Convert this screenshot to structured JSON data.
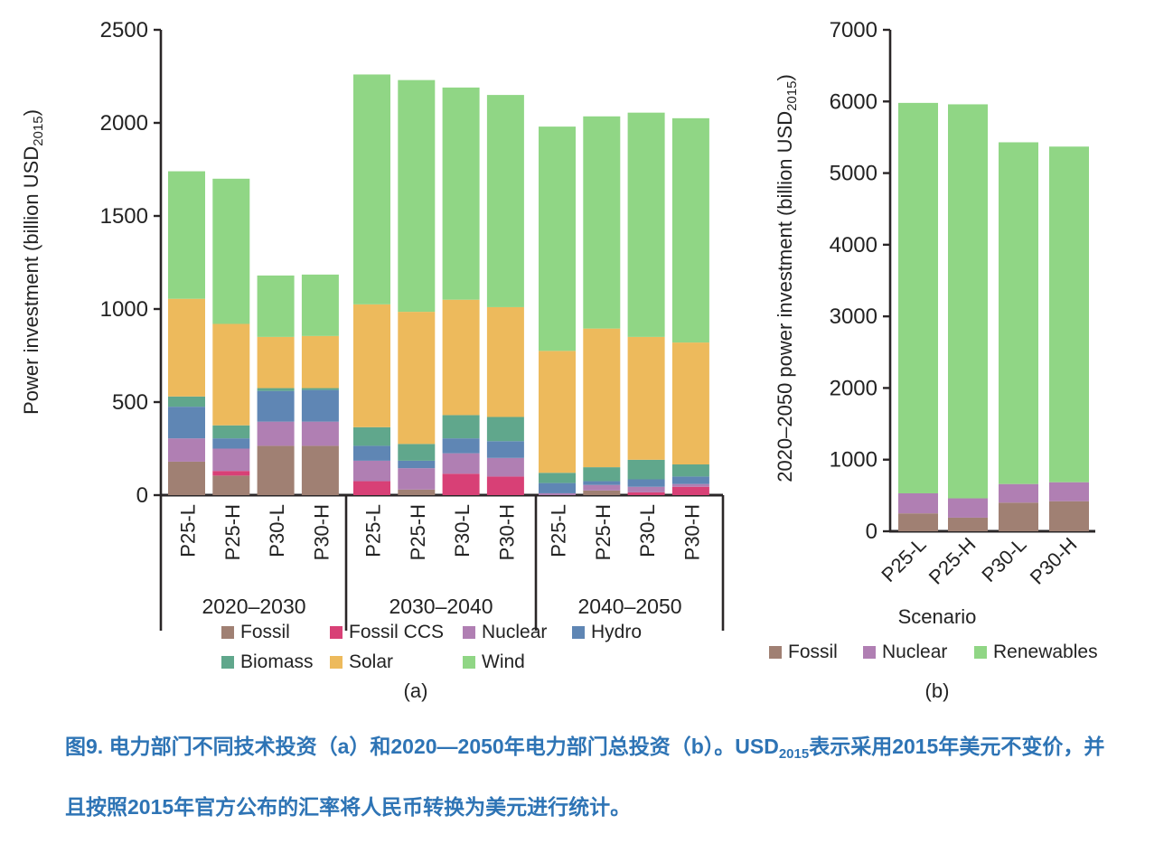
{
  "figure": {
    "background_color": "#ffffff",
    "text_color": "#232323",
    "axis_color": "#2a2627"
  },
  "chart_data": [
    {
      "id": "a",
      "type": "bar",
      "subtype": "stacked",
      "sublabel": "(a)",
      "ylabel": {
        "text": "Power investment (billion USD",
        "sub": "2015",
        "end": ")"
      },
      "ylim": [
        0,
        2500
      ],
      "yticks": [
        0,
        500,
        1000,
        1500,
        2000,
        2500
      ],
      "grid": "off",
      "legend_position": "below, two rows",
      "groups": [
        "2020–2030",
        "2030–2040",
        "2040–2050"
      ],
      "categories": [
        "P25-L",
        "P25-H",
        "P30-L",
        "P30-H"
      ],
      "series": [
        {
          "name": "Fossil",
          "color": "#a08073",
          "values": [
            180,
            105,
            265,
            265,
            0,
            30,
            0,
            0,
            0,
            25,
            0,
            0
          ]
        },
        {
          "name": "Fossil CCS",
          "color": "#d84076",
          "values": [
            0,
            25,
            0,
            0,
            75,
            0,
            115,
            100,
            0,
            0,
            15,
            45
          ]
        },
        {
          "name": "Nuclear",
          "color": "#b07fb3",
          "values": [
            125,
            120,
            130,
            130,
            110,
            115,
            110,
            100,
            10,
            30,
            30,
            15
          ]
        },
        {
          "name": "Hydro",
          "color": "#5f86b4",
          "values": [
            170,
            55,
            165,
            170,
            80,
            40,
            80,
            90,
            55,
            20,
            40,
            40
          ]
        },
        {
          "name": "Biomass",
          "color": "#60a78c",
          "values": [
            55,
            70,
            15,
            10,
            100,
            90,
            125,
            130,
            55,
            75,
            105,
            65
          ]
        },
        {
          "name": "Solar",
          "color": "#edba5c",
          "values": [
            525,
            545,
            275,
            280,
            660,
            710,
            620,
            590,
            655,
            745,
            660,
            655
          ]
        },
        {
          "name": "Wind",
          "color": "#90d685",
          "values": [
            685,
            780,
            330,
            330,
            1235,
            1245,
            1140,
            1140,
            1205,
            1140,
            1205,
            1205
          ]
        }
      ],
      "bar_totals": [
        1740,
        1700,
        1180,
        1185,
        2260,
        2230,
        2190,
        2150,
        1980,
        2035,
        2055,
        2025
      ]
    },
    {
      "id": "b",
      "type": "bar",
      "subtype": "stacked",
      "sublabel": "(b)",
      "xlabel": "Scenario",
      "ylabel": {
        "text": "2020–2050  power investment (billion USD",
        "sub": "2015",
        "end": ")"
      },
      "ylim": [
        0,
        7000
      ],
      "yticks": [
        0,
        1000,
        2000,
        3000,
        4000,
        5000,
        6000,
        7000
      ],
      "grid": "off",
      "legend_position": "below, one row",
      "categories": [
        "P25-L",
        "P25-H",
        "P30-L",
        "P30-H"
      ],
      "series": [
        {
          "name": "Fossil",
          "color": "#a08073",
          "values": [
            250,
            190,
            400,
            420
          ]
        },
        {
          "name": "Nuclear",
          "color": "#b07fb3",
          "values": [
            280,
            270,
            260,
            265
          ]
        },
        {
          "name": "Renewables",
          "color": "#90d685",
          "values": [
            5450,
            5500,
            4770,
            4685
          ]
        }
      ],
      "bar_totals": [
        5980,
        5960,
        5430,
        5370
      ]
    }
  ],
  "caption": {
    "color": "#2e74b5",
    "prefix": "图9. 电力部门不同技术投资（a）和2020—2050年电力部门总投资（b）。USD",
    "sub": "2015",
    "suffix": "表示采用2015年美元不变价，并且按照2015年官方公布的汇率将人民币转换为美元进行统计。"
  }
}
